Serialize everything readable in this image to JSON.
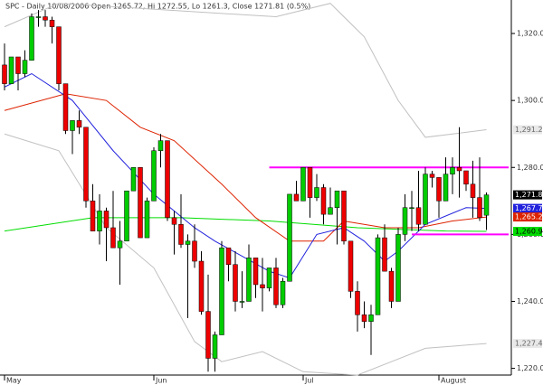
{
  "chart_data": {
    "type": "candlestick",
    "title": "SPC - Daily 10/08/2006 Open 1265.72, Hi 1272.55, Lo 1261.3, Close 1271.81 (0.5%)",
    "ylim": [
      1218,
      1330
    ],
    "yticks": [
      {
        "value": 1220,
        "label": "1,220.00"
      },
      {
        "value": 1240,
        "label": "1,240.00"
      },
      {
        "value": 1260,
        "label": "1,260.00"
      },
      {
        "value": 1280,
        "label": "1,280.00"
      },
      {
        "value": 1300,
        "label": "1,300.00"
      },
      {
        "value": 1320,
        "label": "1,320.00"
      }
    ],
    "xticks": [
      {
        "value": 0,
        "label": "May"
      },
      {
        "value": 22,
        "label": "Jun"
      },
      {
        "value": 44,
        "label": "Jul"
      },
      {
        "value": 64,
        "label": "August"
      }
    ],
    "up_color": "#00cc00",
    "down_color": "#ee0000",
    "open": [
      1310.6,
      1305,
      1313,
      1308,
      1312,
      1325,
      1325,
      1324,
      1322,
      1305,
      1291,
      1294,
      1292,
      1270,
      1261,
      1267,
      1262,
      1256,
      1258,
      1273,
      1280,
      1259,
      1270,
      1285,
      1288,
      1265,
      1263,
      1257,
      1258,
      1252,
      1237,
      1223,
      1230,
      1256,
      1251,
      1240,
      1240,
      1253,
      1245,
      1244,
      1250,
      1239,
      1246,
      1272,
      1270,
      1280,
      1271,
      1274,
      1266,
      1268,
      1273,
      1258,
      1243,
      1236,
      1234,
      1236,
      1259,
      1249,
      1240,
      1260,
      1268,
      1268,
      1263,
      1278,
      1277,
      1270,
      1278,
      1280,
      1279,
      1275,
      1271,
      1265.72
    ],
    "high": [
      1317,
      1313,
      1313,
      1315,
      1326,
      1327,
      1327,
      1325,
      1322,
      1305,
      1294,
      1297,
      1292,
      1275,
      1272,
      1268,
      1273,
      1264,
      1273,
      1280,
      1280,
      1271,
      1286,
      1290,
      1288,
      1267,
      1272,
      1260,
      1263,
      1255,
      1248,
      1231,
      1258,
      1256,
      1255,
      1249,
      1257,
      1253,
      1253,
      1250,
      1253,
      1247,
      1272,
      1276,
      1280,
      1280,
      1278,
      1275,
      1274,
      1273,
      1273,
      1258,
      1246,
      1240,
      1239,
      1260,
      1263,
      1250,
      1262,
      1272,
      1273,
      1279,
      1280,
      1279,
      1277,
      1283,
      1283,
      1292,
      1279,
      1282,
      1283,
      1272.55
    ],
    "low": [
      1303,
      1305,
      1303,
      1307,
      1312,
      1322,
      1322,
      1317,
      1303,
      1290,
      1284,
      1290,
      1268,
      1261,
      1257,
      1252,
      1256,
      1245,
      1258,
      1273,
      1259,
      1259,
      1270,
      1280,
      1264,
      1254,
      1256,
      1235,
      1250,
      1236,
      1219,
      1219,
      1230,
      1246,
      1237,
      1238,
      1240,
      1241,
      1237,
      1243,
      1238,
      1238,
      1246,
      1270,
      1270,
      1265,
      1270,
      1263,
      1266,
      1257,
      1257,
      1241,
      1231,
      1232,
      1224,
      1236,
      1249,
      1238,
      1240,
      1258,
      1261,
      1261,
      1263,
      1274,
      1265,
      1270,
      1272,
      1271,
      1273,
      1265,
      1264,
      1261.3
    ],
    "close": [
      1305,
      1313,
      1308,
      1312,
      1325,
      1325,
      1324,
      1322,
      1305,
      1291,
      1294,
      1292,
      1270,
      1261,
      1267,
      1262,
      1256,
      1258,
      1273,
      1280,
      1259,
      1270,
      1285,
      1288,
      1265,
      1263,
      1257,
      1258,
      1252,
      1237,
      1223,
      1230,
      1256,
      1251,
      1240,
      1240,
      1253,
      1245,
      1244,
      1250,
      1239,
      1246,
      1272,
      1270,
      1280,
      1271,
      1274,
      1266,
      1268,
      1273,
      1258,
      1243,
      1236,
      1234,
      1236,
      1259,
      1249,
      1240,
      1260,
      1268,
      1268,
      1263,
      1278,
      1277,
      1270,
      1278,
      1280,
      1279,
      1275,
      1271,
      1265,
      1271.81
    ],
    "series": [
      {
        "color": "#c0c0c0",
        "x": [
          0,
          8,
          40,
          48,
          53,
          58,
          62,
          66,
          71
        ],
        "values": [
          1322,
          1329,
          1325,
          1329,
          1319,
          1300,
          1289,
          1290,
          1291.27
        ]
      },
      {
        "color": "#c0c0c0",
        "x": [
          0,
          8,
          15,
          22,
          28,
          32,
          38,
          44,
          52,
          57,
          62,
          71
        ],
        "values": [
          1290,
          1285,
          1262,
          1250,
          1228,
          1222,
          1225,
          1219,
          1218,
          1222,
          1226,
          1227.42
        ]
      },
      {
        "color": "#00dd00",
        "x": [
          0,
          13,
          26,
          39,
          52,
          65,
          71
        ],
        "values": [
          1261,
          1265,
          1265,
          1264,
          1262,
          1261,
          1260.91
        ]
      },
      {
        "color": "#dd2200",
        "x": [
          0,
          9,
          15,
          20,
          25,
          32,
          37,
          42,
          47,
          50,
          56,
          61,
          66,
          71
        ],
        "values": [
          1297,
          1302,
          1300,
          1292,
          1288,
          1275,
          1265,
          1258,
          1258,
          1264,
          1262,
          1262,
          1264,
          1265.21
        ]
      },
      {
        "color": "#2222dd",
        "x": [
          0,
          4,
          10,
          16,
          22,
          28,
          31,
          39,
          42,
          46,
          50,
          53,
          56,
          58,
          62,
          68,
          71
        ],
        "values": [
          1304,
          1308,
          1300,
          1285,
          1272,
          1262,
          1258,
          1249,
          1247,
          1260,
          1262,
          1258,
          1252,
          1255,
          1263,
          1268,
          1267.77
        ]
      }
    ],
    "hlines": [
      {
        "value": 1280,
        "from": 39,
        "color": "#ff00ff"
      },
      {
        "value": 1260,
        "from": 60,
        "color": "#ff00ff"
      }
    ],
    "price_labels": [
      {
        "value": 1291.27,
        "label": "1,291.27",
        "color": "#e8e8e8",
        "text_color": "#666666"
      },
      {
        "value": 1271.81,
        "label": "1,271.81",
        "color": "#000000",
        "text_color": "#ffffff"
      },
      {
        "value": 1267.77,
        "label": "1,267.77",
        "color": "#2222dd",
        "text_color": "#ffffff"
      },
      {
        "value": 1265.21,
        "label": "1,265.21",
        "color": "#dd2200",
        "text_color": "#ffffff"
      },
      {
        "value": 1260.91,
        "label": "1,260.91",
        "color": "#00dd00",
        "text_color": "#000000"
      },
      {
        "value": 1227.42,
        "label": "1,227.42",
        "color": "#e8e8e8",
        "text_color": "#666666"
      }
    ]
  }
}
